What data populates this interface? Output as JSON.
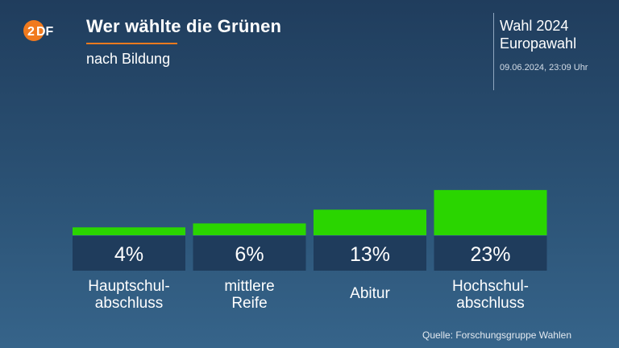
{
  "header": {
    "title": "Wer wählte die Grünen",
    "subtitle": "nach Bildung",
    "election_line1": "Wahl 2024",
    "election_line2": "Europawahl",
    "timestamp": "09.06.2024, 23:09 Uhr"
  },
  "logo": {
    "text": "ZDF",
    "color": "#f07a1e"
  },
  "source": "Quelle: Forschungsgruppe Wahlen",
  "colors": {
    "bar": "#2ad500",
    "value_box": "#1f3c5c",
    "accent": "#f07a1e"
  },
  "chart_data": {
    "type": "bar",
    "title": "Wer wählte die Grünen",
    "subtitle": "nach Bildung",
    "categories": [
      "Hauptschul-\nabschluss",
      "mittlere\nReife",
      "Abitur",
      "Hochschul-\nabschluss"
    ],
    "values": [
      4,
      6,
      13,
      23
    ],
    "value_labels": [
      "4%",
      "6%",
      "13%",
      "23%"
    ],
    "unit": "%",
    "grid": false,
    "legend": "none"
  }
}
